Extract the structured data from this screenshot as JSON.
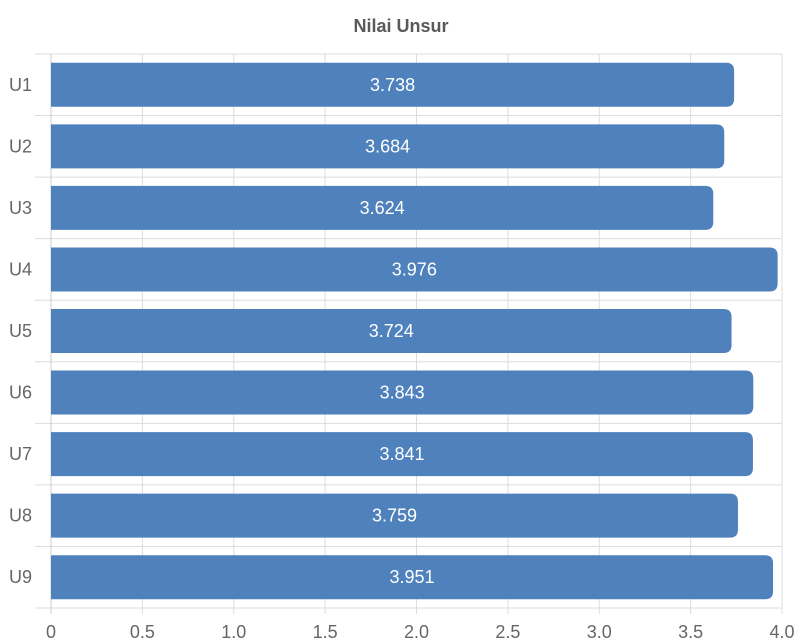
{
  "chart_data": {
    "type": "bar",
    "orientation": "horizontal",
    "title": "Nilai Unsur",
    "categories": [
      "U1",
      "U2",
      "U3",
      "U4",
      "U5",
      "U6",
      "U7",
      "U8",
      "U9"
    ],
    "values": [
      3.738,
      3.684,
      3.624,
      3.976,
      3.724,
      3.843,
      3.841,
      3.759,
      3.951
    ],
    "data_labels": [
      "3.738",
      "3.684",
      "3.624",
      "3.976",
      "3.724",
      "3.843",
      "3.841",
      "3.759",
      "3.951"
    ],
    "x_ticks": [
      "0",
      "0.5",
      "1.0",
      "1.5",
      "2.0",
      "2.5",
      "3.0",
      "3.5",
      "4.0"
    ],
    "xlim": [
      0,
      4
    ],
    "xlabel": "",
    "ylabel": "",
    "grid": true,
    "legend": "none",
    "bar_color": "#4f81bd",
    "data_label_color": "#ffffff"
  }
}
